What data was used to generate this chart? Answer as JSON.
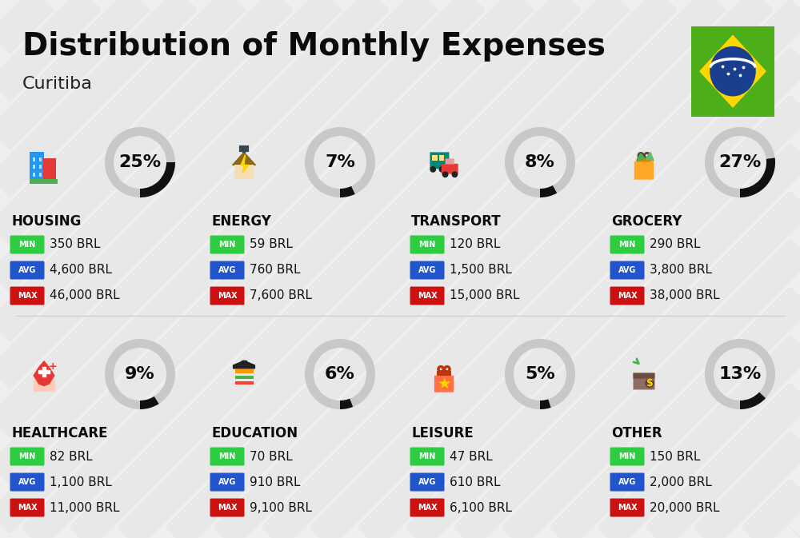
{
  "title": "Distribution of Monthly Expenses",
  "subtitle": "Curitiba",
  "background_color": "#efefef",
  "categories": [
    {
      "name": "HOUSING",
      "pct": 25,
      "min": "350 BRL",
      "avg": "4,600 BRL",
      "max": "46,000 BRL",
      "col": 0,
      "row": 0
    },
    {
      "name": "ENERGY",
      "pct": 7,
      "min": "59 BRL",
      "avg": "760 BRL",
      "max": "7,600 BRL",
      "col": 1,
      "row": 0
    },
    {
      "name": "TRANSPORT",
      "pct": 8,
      "min": "120 BRL",
      "avg": "1,500 BRL",
      "max": "15,000 BRL",
      "col": 2,
      "row": 0
    },
    {
      "name": "GROCERY",
      "pct": 27,
      "min": "290 BRL",
      "avg": "3,800 BRL",
      "max": "38,000 BRL",
      "col": 3,
      "row": 0
    },
    {
      "name": "HEALTHCARE",
      "pct": 9,
      "min": "82 BRL",
      "avg": "1,100 BRL",
      "max": "11,000 BRL",
      "col": 0,
      "row": 1
    },
    {
      "name": "EDUCATION",
      "pct": 6,
      "min": "70 BRL",
      "avg": "910 BRL",
      "max": "9,100 BRL",
      "col": 1,
      "row": 1
    },
    {
      "name": "LEISURE",
      "pct": 5,
      "min": "47 BRL",
      "avg": "610 BRL",
      "max": "6,100 BRL",
      "col": 2,
      "row": 1
    },
    {
      "name": "OTHER",
      "pct": 13,
      "min": "150 BRL",
      "avg": "2,000 BRL",
      "max": "20,000 BRL",
      "col": 3,
      "row": 1
    }
  ],
  "color_min": "#2ecc40",
  "color_avg": "#2255cc",
  "color_max": "#cc1111",
  "color_ring_filled": "#111111",
  "color_ring_empty": "#c8c8c8",
  "title_fontsize": 28,
  "subtitle_fontsize": 16,
  "cat_fontsize": 12,
  "val_fontsize": 11,
  "pct_fontsize": 16,
  "stripe_color": "#e8e8e8",
  "stripe_alpha": 1.0
}
